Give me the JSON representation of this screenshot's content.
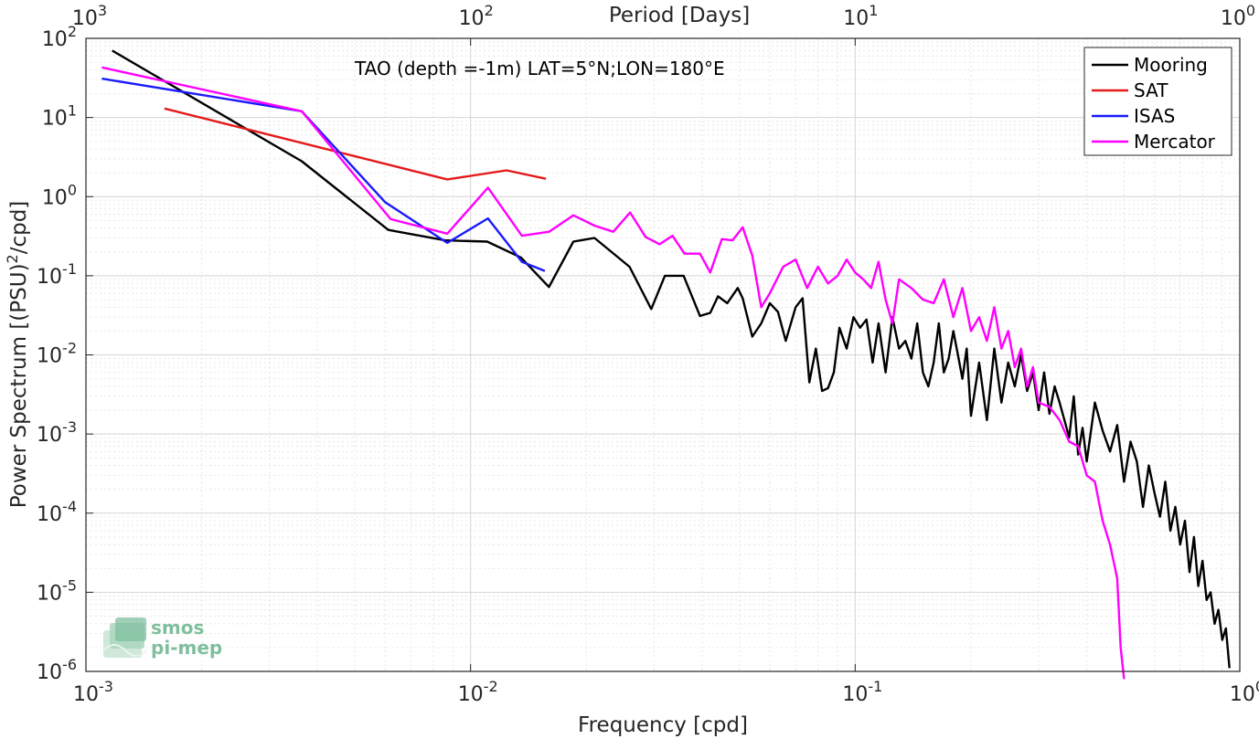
{
  "chart_data": {
    "type": "line",
    "scale": "log-log",
    "annotation": "TAO (depth =-1m) LAT=5°N;LON=180°E",
    "xlabel": "Frequency [cpd]",
    "ylabel": "Power Spectrum [(PSU)²/cpd]",
    "top_xlabel": "Period [Days]",
    "xlim": [
      0.001,
      1
    ],
    "ylim": [
      1e-06,
      100
    ],
    "grid": true,
    "legend_position": "top-right",
    "x_ticks": [
      {
        "value": 0.001,
        "base": "10",
        "exp": "-3"
      },
      {
        "value": 0.01,
        "base": "10",
        "exp": "-2"
      },
      {
        "value": 0.1,
        "base": "10",
        "exp": "-1"
      },
      {
        "value": 1,
        "base": "10",
        "exp": "0"
      }
    ],
    "top_ticks": [
      {
        "value": 0.001,
        "base": "10",
        "exp": "3"
      },
      {
        "value": 0.01,
        "base": "10",
        "exp": "2"
      },
      {
        "value": 0.1,
        "base": "10",
        "exp": "1"
      },
      {
        "value": 1,
        "base": "10",
        "exp": "0"
      }
    ],
    "y_ticks": [
      {
        "value": 100,
        "base": "10",
        "exp": "2"
      },
      {
        "value": 10,
        "base": "10",
        "exp": "1"
      },
      {
        "value": 1,
        "base": "10",
        "exp": "0"
      },
      {
        "value": 0.1,
        "base": "10",
        "exp": "-1"
      },
      {
        "value": 0.01,
        "base": "10",
        "exp": "-2"
      },
      {
        "value": 0.001,
        "base": "10",
        "exp": "-3"
      },
      {
        "value": 0.0001,
        "base": "10",
        "exp": "-4"
      },
      {
        "value": 1e-05,
        "base": "10",
        "exp": "-5"
      },
      {
        "value": 1e-06,
        "base": "10",
        "exp": "-6"
      }
    ],
    "series": [
      {
        "name": "Mooring",
        "color": "#000000",
        "x": [
          0.00117,
          0.00364,
          0.00611,
          0.00858,
          0.01105,
          0.01352,
          0.01599,
          0.0185,
          0.021,
          0.0259,
          0.0295,
          0.032,
          0.0358,
          0.0395,
          0.042,
          0.044,
          0.0465,
          0.0495,
          0.051,
          0.054,
          0.057,
          0.06,
          0.063,
          0.066,
          0.07,
          0.073,
          0.076,
          0.079,
          0.082,
          0.085,
          0.088,
          0.091,
          0.095,
          0.099,
          0.103,
          0.107,
          0.111,
          0.115,
          0.12,
          0.125,
          0.13,
          0.135,
          0.14,
          0.145,
          0.15,
          0.155,
          0.16,
          0.165,
          0.17,
          0.175,
          0.18,
          0.185,
          0.19,
          0.195,
          0.2,
          0.21,
          0.22,
          0.23,
          0.24,
          0.25,
          0.26,
          0.27,
          0.28,
          0.29,
          0.3,
          0.31,
          0.32,
          0.33,
          0.34,
          0.35,
          0.36,
          0.37,
          0.38,
          0.39,
          0.4,
          0.42,
          0.44,
          0.46,
          0.48,
          0.5,
          0.52,
          0.54,
          0.56,
          0.58,
          0.6,
          0.62,
          0.64,
          0.66,
          0.68,
          0.7,
          0.72,
          0.74,
          0.76,
          0.78,
          0.8,
          0.82,
          0.84,
          0.86,
          0.88,
          0.9,
          0.92,
          0.94
        ],
        "y": [
          70,
          2.8,
          0.38,
          0.28,
          0.27,
          0.17,
          0.072,
          0.27,
          0.3,
          0.13,
          0.038,
          0.1,
          0.1,
          0.031,
          0.034,
          0.055,
          0.045,
          0.07,
          0.052,
          0.017,
          0.025,
          0.045,
          0.035,
          0.015,
          0.04,
          0.052,
          0.0045,
          0.012,
          0.0035,
          0.0038,
          0.006,
          0.022,
          0.012,
          0.03,
          0.022,
          0.028,
          0.008,
          0.025,
          0.006,
          0.03,
          0.012,
          0.015,
          0.009,
          0.025,
          0.006,
          0.004,
          0.008,
          0.025,
          0.006,
          0.009,
          0.02,
          0.01,
          0.005,
          0.012,
          0.0017,
          0.008,
          0.0015,
          0.012,
          0.0025,
          0.008,
          0.004,
          0.01,
          0.0035,
          0.006,
          0.002,
          0.006,
          0.0018,
          0.004,
          0.0025,
          0.0015,
          0.0009,
          0.003,
          0.00055,
          0.0012,
          0.00045,
          0.0025,
          0.0011,
          0.0006,
          0.0013,
          0.00025,
          0.0008,
          0.00045,
          0.00012,
          0.0004,
          0.00018,
          9e-05,
          0.00025,
          6e-05,
          0.00012,
          4e-05,
          8e-05,
          1.8e-05,
          5e-05,
          1.2e-05,
          2.5e-05,
          8e-06,
          1e-05,
          4e-06,
          6e-06,
          2.5e-06,
          3.5e-06,
          1.1e-06
        ]
      },
      {
        "name": "SAT",
        "color": "#e41a1a",
        "x": [
          0.0016,
          0.0087,
          0.0124,
          0.0157
        ],
        "y": [
          13,
          1.65,
          2.15,
          1.68
        ]
      },
      {
        "name": "ISAS",
        "color": "#1a1aff",
        "x": [
          0.0011,
          0.00364,
          0.006,
          0.0087,
          0.0111,
          0.0136,
          0.0156
        ],
        "y": [
          31,
          12,
          0.85,
          0.26,
          0.53,
          0.15,
          0.115
        ]
      },
      {
        "name": "Mercator",
        "color": "#ff00ff",
        "x": [
          0.0011,
          0.00364,
          0.0062,
          0.0087,
          0.0111,
          0.0136,
          0.016,
          0.0185,
          0.021,
          0.0235,
          0.026,
          0.0285,
          0.031,
          0.0335,
          0.036,
          0.0395,
          0.042,
          0.045,
          0.048,
          0.051,
          0.054,
          0.057,
          0.06,
          0.065,
          0.07,
          0.075,
          0.08,
          0.085,
          0.09,
          0.095,
          0.1,
          0.105,
          0.11,
          0.115,
          0.12,
          0.125,
          0.13,
          0.14,
          0.15,
          0.16,
          0.17,
          0.18,
          0.19,
          0.2,
          0.21,
          0.22,
          0.23,
          0.24,
          0.25,
          0.26,
          0.27,
          0.28,
          0.29,
          0.3,
          0.32,
          0.34,
          0.36,
          0.38,
          0.4,
          0.42,
          0.44,
          0.46,
          0.48,
          0.49,
          0.5
        ],
        "y": [
          43,
          12,
          0.52,
          0.34,
          1.3,
          0.32,
          0.36,
          0.58,
          0.43,
          0.36,
          0.63,
          0.31,
          0.25,
          0.32,
          0.19,
          0.19,
          0.11,
          0.29,
          0.28,
          0.41,
          0.18,
          0.04,
          0.06,
          0.13,
          0.16,
          0.07,
          0.13,
          0.08,
          0.1,
          0.16,
          0.11,
          0.09,
          0.07,
          0.15,
          0.05,
          0.025,
          0.09,
          0.07,
          0.05,
          0.045,
          0.09,
          0.03,
          0.07,
          0.02,
          0.03,
          0.015,
          0.04,
          0.012,
          0.02,
          0.007,
          0.012,
          0.004,
          0.007,
          0.0025,
          0.0022,
          0.0015,
          0.0008,
          0.0007,
          0.0003,
          0.00025,
          8e-05,
          4e-05,
          1.5e-05,
          2e-06,
          8e-07
        ]
      }
    ]
  },
  "logo": {
    "line1": "smos",
    "line2": "pi-mep"
  }
}
